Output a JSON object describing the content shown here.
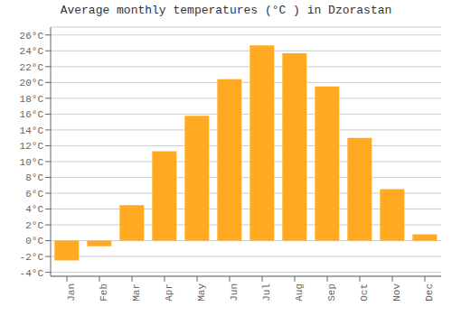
{
  "chart_data": {
    "type": "bar",
    "title": "Average monthly temperatures (°C ) in Dzorastan",
    "categories": [
      "Jan",
      "Feb",
      "Mar",
      "Apr",
      "May",
      "Jun",
      "Jul",
      "Aug",
      "Sep",
      "Oct",
      "Nov",
      "Dec"
    ],
    "values": [
      -2.5,
      -0.7,
      4.5,
      11.3,
      15.8,
      20.4,
      24.7,
      23.7,
      19.5,
      13.0,
      6.5,
      0.8
    ],
    "color": "#FFAA22",
    "ylim": [
      -4.5,
      27
    ],
    "yticks": [
      {
        "value": -4,
        "label": "-4°C"
      },
      {
        "value": -2,
        "label": "-2°C"
      },
      {
        "value": 0,
        "label": "0°C"
      },
      {
        "value": 2,
        "label": "2°C"
      },
      {
        "value": 4,
        "label": "4°C"
      },
      {
        "value": 6,
        "label": "6°C"
      },
      {
        "value": 8,
        "label": "8°C"
      },
      {
        "value": 10,
        "label": "10°C"
      },
      {
        "value": 12,
        "label": "12°C"
      },
      {
        "value": 14,
        "label": "14°C"
      },
      {
        "value": 16,
        "label": "16°C"
      },
      {
        "value": 18,
        "label": "18°C"
      },
      {
        "value": 20,
        "label": "20°C"
      },
      {
        "value": 22,
        "label": "22°C"
      },
      {
        "value": 24,
        "label": "24°C"
      },
      {
        "value": 26,
        "label": "26°C"
      }
    ],
    "grid": true
  }
}
